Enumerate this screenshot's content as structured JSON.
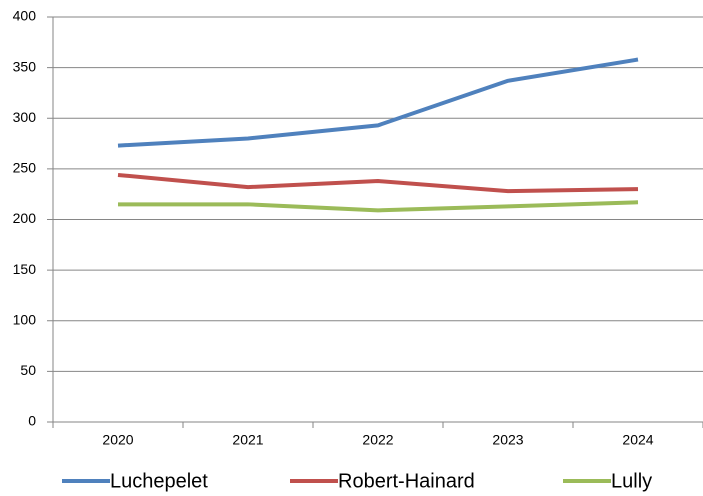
{
  "chart_data": {
    "type": "line",
    "categories": [
      "2020",
      "2021",
      "2022",
      "2023",
      "2024"
    ],
    "series": [
      {
        "name": "Luchepelet",
        "color": "#4f81bd",
        "values": [
          273,
          280,
          293,
          337,
          358
        ]
      },
      {
        "name": "Robert-Hainard",
        "color": "#c0504d",
        "values": [
          244,
          232,
          238,
          228,
          230
        ]
      },
      {
        "name": "Lully",
        "color": "#9bbb59",
        "values": [
          215,
          215,
          209,
          213,
          217
        ]
      }
    ],
    "ylim": [
      0,
      400
    ],
    "yticks": [
      0,
      50,
      100,
      150,
      200,
      250,
      300,
      350,
      400
    ],
    "grid": true,
    "legend": "bottom"
  }
}
